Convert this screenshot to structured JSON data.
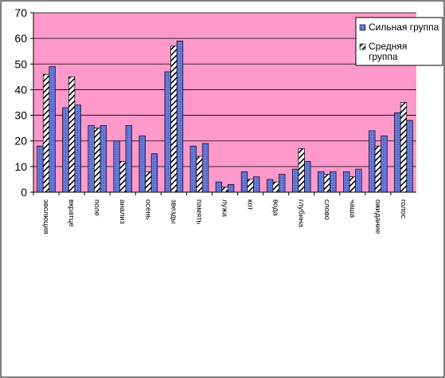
{
  "chart_data": {
    "type": "bar",
    "title": "",
    "xlabel": "",
    "ylabel": "",
    "ylim": [
      0,
      70
    ],
    "yticks": [
      0,
      10,
      20,
      30,
      40,
      50,
      60,
      70
    ],
    "grid": true,
    "legend_position": "top-right",
    "plot_background": "#FF99CC",
    "categories": [
      "эволюция",
      "вкратце",
      "поле",
      "анализ",
      "осень",
      "звезды",
      "память",
      "лужа",
      "кот",
      "вода",
      "глубина",
      "слово",
      "чаша",
      "ожидание",
      "голос"
    ],
    "series": [
      {
        "name": "Сильная группа",
        "colors": [
          "#6c7fe0",
          "#3a4ea8"
        ],
        "values": [
          18,
          33,
          26,
          20,
          22,
          47,
          18,
          4,
          8,
          5,
          9,
          8,
          8,
          24,
          31
        ]
      },
      {
        "name": "",
        "colors": [
          "#ffffff",
          "#000000"
        ],
        "values": [
          46,
          45,
          25,
          12,
          8,
          57,
          14,
          2,
          5,
          4,
          17,
          7,
          6,
          18,
          35
        ]
      },
      {
        "name": "Средняя группа",
        "colors": [
          "#6c7fe0",
          "#3a4ea8"
        ],
        "values": [
          49,
          34,
          26,
          26,
          15,
          59,
          19,
          3,
          6,
          7,
          12,
          8,
          9,
          22,
          28
        ]
      }
    ]
  }
}
